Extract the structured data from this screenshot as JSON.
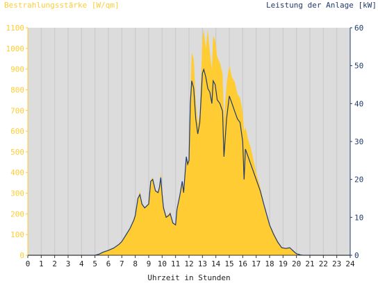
{
  "chart_data": {
    "type": "area",
    "title": "",
    "y_left_label": "Bestrahlungsstärke [W/qm]",
    "y_right_label": "Leistung der Anlage [kW]",
    "xlabel": "Uhrzeit in Stunden",
    "x_range": [
      0,
      24
    ],
    "y_left_range": [
      0,
      1100
    ],
    "y_right_range": [
      0,
      60
    ],
    "x_ticks": [
      "0",
      "1",
      "2",
      "3",
      "4",
      "5",
      "6",
      "7",
      "8",
      "9",
      "10",
      "11",
      "12",
      "13",
      "14",
      "15",
      "16",
      "17",
      "18",
      "19",
      "20",
      "21",
      "22",
      "23",
      "24"
    ],
    "y_left_ticks": [
      "0",
      "100",
      "200",
      "300",
      "400",
      "500",
      "600",
      "700",
      "800",
      "900",
      "1000",
      "1100"
    ],
    "y_right_ticks": [
      "0",
      "10",
      "20",
      "30",
      "40",
      "50",
      "60"
    ],
    "colors": {
      "irradiance_fill": "#ffcc33",
      "power_line": "#1f3a6e",
      "plot_bg": "#dcdcdc",
      "left_axis": "#ffcc33",
      "right_axis": "#1f3a6e"
    },
    "series": [
      {
        "name": "Bestrahlungsstärke [W/qm]",
        "axis": "left",
        "style": "area",
        "x": [
          0,
          5,
          5.3,
          5.6,
          6,
          6.4,
          6.8,
          7,
          7.3,
          7.6,
          7.9,
          8,
          8.2,
          8.35,
          8.5,
          8.7,
          9,
          9.15,
          9.3,
          9.5,
          9.7,
          9.8,
          9.9,
          10,
          10.1,
          10.3,
          10.5,
          10.6,
          10.8,
          11,
          11.1,
          11.3,
          11.5,
          11.6,
          11.8,
          11.9,
          12,
          12.1,
          12.2,
          12.35,
          12.5,
          12.65,
          12.8,
          13,
          13.1,
          13.25,
          13.4,
          13.55,
          13.7,
          13.8,
          13.95,
          14.1,
          14.3,
          14.5,
          14.6,
          14.8,
          15,
          15.2,
          15.4,
          15.6,
          15.8,
          16,
          16.1,
          16.2,
          16.4,
          16.6,
          16.8,
          17,
          17.3,
          17.6,
          18,
          18.3,
          18.6,
          18.9,
          19.2,
          19.5,
          19.8,
          20,
          20.3,
          20.5,
          21,
          24
        ],
        "y": [
          0,
          0,
          5,
          15,
          25,
          35,
          55,
          70,
          100,
          130,
          180,
          200,
          280,
          310,
          250,
          230,
          250,
          360,
          380,
          310,
          300,
          330,
          400,
          320,
          240,
          190,
          200,
          210,
          160,
          150,
          220,
          290,
          360,
          300,
          480,
          450,
          470,
          760,
          980,
          950,
          750,
          640,
          680,
          1050,
          1090,
          1000,
          1090,
          980,
          900,
          1060,
          1040,
          960,
          930,
          880,
          660,
          830,
          920,
          860,
          840,
          780,
          760,
          690,
          600,
          620,
          560,
          520,
          460,
          400,
          330,
          240,
          150,
          110,
          70,
          40,
          35,
          38,
          20,
          8,
          2,
          0,
          0,
          0
        ]
      },
      {
        "name": "Leistung der Anlage [kW]",
        "axis": "right",
        "style": "line",
        "x": [
          0,
          5,
          5.3,
          5.6,
          6,
          6.4,
          6.8,
          7,
          7.3,
          7.6,
          7.9,
          8,
          8.2,
          8.35,
          8.5,
          8.7,
          9,
          9.15,
          9.3,
          9.5,
          9.7,
          9.8,
          9.9,
          10,
          10.1,
          10.3,
          10.5,
          10.6,
          10.8,
          11,
          11.1,
          11.3,
          11.5,
          11.6,
          11.8,
          11.9,
          12,
          12.1,
          12.2,
          12.35,
          12.5,
          12.65,
          12.8,
          13,
          13.1,
          13.25,
          13.4,
          13.55,
          13.7,
          13.8,
          13.95,
          14.1,
          14.3,
          14.5,
          14.6,
          14.8,
          15,
          15.2,
          15.4,
          15.6,
          15.8,
          16,
          16.1,
          16.2,
          16.4,
          16.6,
          16.8,
          17,
          17.3,
          17.6,
          18,
          18.3,
          18.6,
          18.9,
          19.2,
          19.5,
          19.8,
          20,
          20.3,
          20.5,
          21,
          24
        ],
        "y": [
          0,
          0,
          0.3,
          0.8,
          1.3,
          1.9,
          2.9,
          3.6,
          5.3,
          7,
          9.3,
          10.5,
          15,
          16,
          13.5,
          12.5,
          13.5,
          19.5,
          20,
          17,
          16.5,
          18,
          20.5,
          16,
          12.5,
          10,
          10.5,
          11,
          8.5,
          8,
          12,
          15.5,
          19.5,
          16.5,
          26,
          24,
          25,
          40,
          46,
          44,
          36,
          32,
          35,
          48,
          49,
          47,
          44,
          43,
          40,
          46,
          45,
          41,
          40,
          38,
          26,
          36,
          42,
          40,
          38,
          36,
          35,
          30,
          20,
          28,
          26,
          24,
          22,
          20,
          17,
          13,
          8,
          5.5,
          3.5,
          2,
          1.8,
          2,
          1,
          0.4,
          0.1,
          0,
          0,
          0
        ]
      }
    ]
  }
}
